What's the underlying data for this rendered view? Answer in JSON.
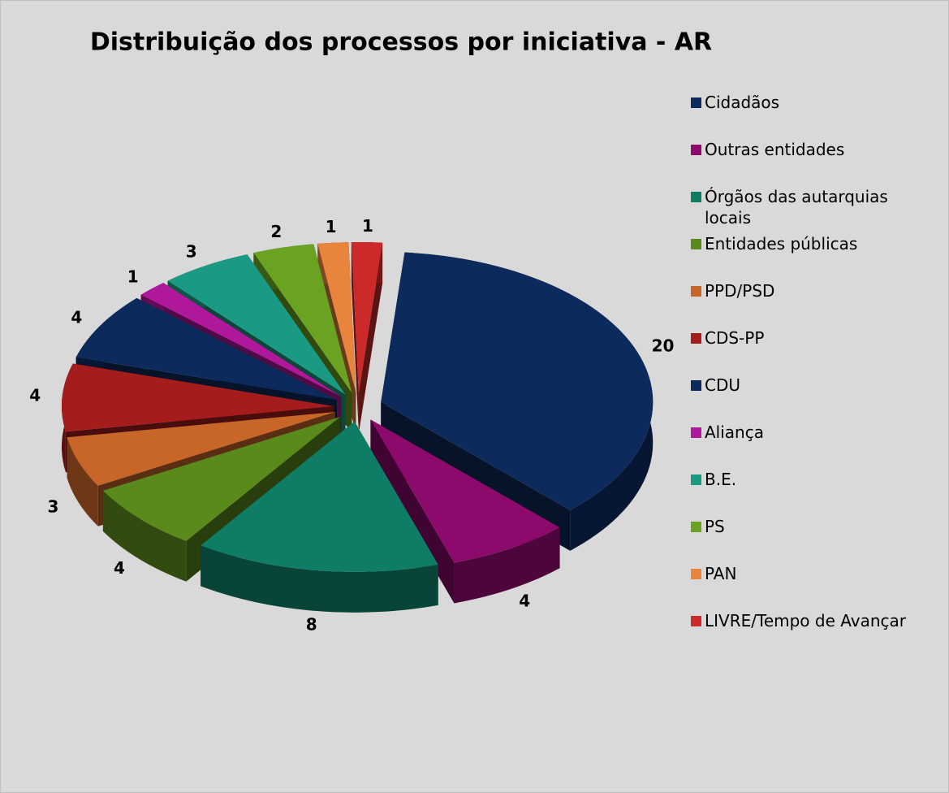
{
  "chart_data": {
    "type": "pie",
    "title": "Distribuição dos processos por iniciativa - AR",
    "categories": [
      "Cidadãos",
      "Outras entidades",
      "Órgãos das autarquias locais",
      "Entidades públicas",
      "PPD/PSD",
      "CDS-PP",
      "CDU",
      "Aliança",
      "B.E.",
      "PS",
      "PAN",
      "LIVRE/Tempo de Avançar"
    ],
    "values": [
      20,
      4,
      8,
      4,
      3,
      4,
      4,
      1,
      3,
      2,
      1,
      1
    ],
    "colors": [
      "#0d2a5c",
      "#8c0a6c",
      "#0f7d66",
      "#5a8a1c",
      "#c8662a",
      "#a51c1c",
      "#0d2a5c",
      "#b0189c",
      "#1a9a82",
      "#6aa222",
      "#e8843c",
      "#cc2a2a"
    ],
    "legend": "right"
  }
}
